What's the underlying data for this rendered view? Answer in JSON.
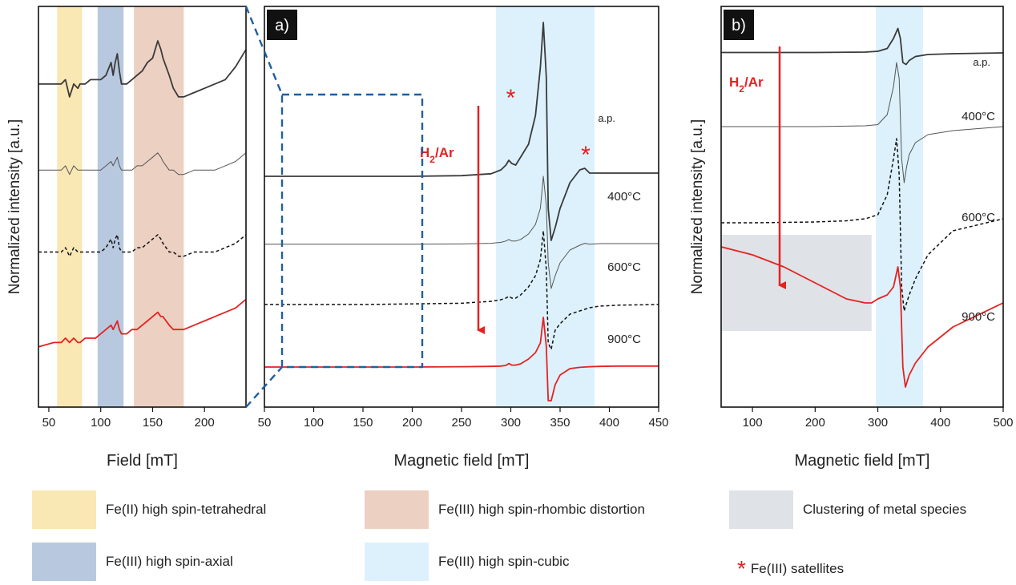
{
  "chart_data": [
    {
      "panel": "zoom",
      "type": "line",
      "xlabel": "Field [mT]",
      "ylabel": "Normalized intensity [a.u.]",
      "xlim": [
        40,
        240
      ],
      "xticks": [
        50,
        100,
        150,
        200
      ],
      "bands": [
        {
          "range": [
            58,
            82
          ],
          "legend": 0
        },
        {
          "range": [
            97,
            122
          ],
          "legend": 1
        },
        {
          "range": [
            132,
            180
          ],
          "legend": 2
        }
      ],
      "series": [
        {
          "label": "a.p.",
          "style": "dark",
          "x": [
            40,
            55,
            62,
            66,
            70,
            74,
            78,
            80,
            85,
            90,
            95,
            100,
            105,
            110,
            112,
            114,
            116,
            118,
            120,
            125,
            130,
            135,
            140,
            145,
            150,
            155,
            158,
            160,
            163,
            166,
            170,
            175,
            180,
            190,
            200,
            210,
            220,
            230,
            240
          ],
          "y": [
            0.8,
            0.8,
            0.8,
            0.81,
            0.77,
            0.8,
            0.79,
            0.8,
            0.8,
            0.81,
            0.81,
            0.81,
            0.82,
            0.85,
            0.82,
            0.85,
            0.87,
            0.83,
            0.8,
            0.8,
            0.81,
            0.82,
            0.83,
            0.85,
            0.86,
            0.9,
            0.88,
            0.86,
            0.84,
            0.82,
            0.79,
            0.77,
            0.77,
            0.78,
            0.79,
            0.8,
            0.81,
            0.84,
            0.88
          ]
        },
        {
          "label": "400°C",
          "style": "thin",
          "x": [
            40,
            55,
            62,
            66,
            70,
            74,
            78,
            80,
            85,
            90,
            95,
            100,
            105,
            110,
            112,
            114,
            116,
            118,
            120,
            125,
            130,
            135,
            140,
            145,
            150,
            155,
            158,
            160,
            163,
            166,
            170,
            175,
            180,
            190,
            200,
            210,
            220,
            230,
            240
          ],
          "y": [
            0.6,
            0.6,
            0.6,
            0.61,
            0.59,
            0.61,
            0.6,
            0.6,
            0.6,
            0.6,
            0.6,
            0.6,
            0.61,
            0.62,
            0.61,
            0.62,
            0.63,
            0.61,
            0.6,
            0.6,
            0.6,
            0.61,
            0.61,
            0.62,
            0.63,
            0.64,
            0.63,
            0.62,
            0.61,
            0.6,
            0.6,
            0.59,
            0.59,
            0.6,
            0.6,
            0.6,
            0.61,
            0.62,
            0.64
          ]
        },
        {
          "label": "600°C",
          "style": "dashed",
          "x": [
            40,
            55,
            62,
            66,
            70,
            74,
            78,
            80,
            85,
            90,
            95,
            100,
            105,
            110,
            112,
            114,
            116,
            118,
            120,
            125,
            130,
            135,
            140,
            145,
            150,
            155,
            158,
            160,
            163,
            166,
            170,
            175,
            180,
            190,
            200,
            210,
            220,
            230,
            240
          ],
          "y": [
            0.41,
            0.41,
            0.41,
            0.42,
            0.4,
            0.42,
            0.41,
            0.41,
            0.41,
            0.41,
            0.41,
            0.41,
            0.42,
            0.44,
            0.42,
            0.44,
            0.45,
            0.42,
            0.41,
            0.41,
            0.41,
            0.42,
            0.42,
            0.43,
            0.44,
            0.45,
            0.44,
            0.43,
            0.42,
            0.41,
            0.41,
            0.4,
            0.4,
            0.41,
            0.41,
            0.41,
            0.42,
            0.43,
            0.45
          ]
        },
        {
          "label": "900°C",
          "style": "red",
          "x": [
            40,
            55,
            62,
            66,
            70,
            74,
            78,
            80,
            85,
            90,
            95,
            100,
            105,
            110,
            112,
            114,
            116,
            118,
            120,
            125,
            130,
            135,
            140,
            145,
            150,
            155,
            158,
            160,
            163,
            166,
            170,
            175,
            180,
            190,
            200,
            210,
            220,
            230,
            240
          ],
          "y": [
            0.19,
            0.2,
            0.2,
            0.21,
            0.2,
            0.21,
            0.2,
            0.2,
            0.21,
            0.21,
            0.21,
            0.22,
            0.23,
            0.24,
            0.23,
            0.24,
            0.25,
            0.23,
            0.22,
            0.22,
            0.23,
            0.23,
            0.24,
            0.25,
            0.26,
            0.27,
            0.26,
            0.26,
            0.25,
            0.24,
            0.23,
            0.23,
            0.23,
            0.24,
            0.25,
            0.26,
            0.27,
            0.28,
            0.3
          ]
        }
      ]
    },
    {
      "panel": "a",
      "tag": "a)",
      "type": "line",
      "xlabel": "Magnetic field [mT]",
      "xlim": [
        50,
        450
      ],
      "xticks": [
        50,
        100,
        150,
        200,
        250,
        300,
        350,
        400,
        450
      ],
      "bands": [
        {
          "range": [
            285,
            385
          ],
          "legend": 4
        }
      ],
      "arrow_label": "H",
      "arrow_sub": "2",
      "arrow_suffix": "/Ar",
      "series": [
        {
          "label": "a.p.",
          "style": "dark",
          "x": [
            50,
            100,
            150,
            200,
            250,
            280,
            290,
            295,
            298,
            301,
            305,
            310,
            318,
            325,
            330,
            333,
            336,
            338,
            341,
            345,
            350,
            360,
            370,
            375,
            380,
            390,
            410,
            450
          ],
          "y": [
            0.72,
            0.72,
            0.72,
            0.72,
            0.722,
            0.728,
            0.74,
            0.755,
            0.77,
            0.76,
            0.755,
            0.78,
            0.82,
            0.91,
            1.06,
            1.2,
            1.03,
            0.62,
            0.52,
            0.56,
            0.62,
            0.7,
            0.74,
            0.745,
            0.73,
            0.73,
            0.73,
            0.73
          ]
        },
        {
          "label": "400°C",
          "style": "thin",
          "x": [
            50,
            100,
            150,
            200,
            250,
            280,
            290,
            295,
            298,
            301,
            305,
            310,
            318,
            325,
            330,
            333,
            336,
            338,
            341,
            345,
            350,
            360,
            370,
            375,
            380,
            390,
            410,
            450
          ],
          "y": [
            0.508,
            0.508,
            0.508,
            0.508,
            0.509,
            0.511,
            0.514,
            0.518,
            0.523,
            0.518,
            0.518,
            0.523,
            0.54,
            0.57,
            0.62,
            0.72,
            0.63,
            0.45,
            0.37,
            0.41,
            0.45,
            0.49,
            0.505,
            0.511,
            0.508,
            0.51,
            0.51,
            0.51
          ]
        },
        {
          "label": "600°C",
          "style": "dashed",
          "x": [
            50,
            100,
            150,
            200,
            250,
            280,
            290,
            295,
            298,
            301,
            305,
            310,
            318,
            325,
            330,
            333,
            336,
            338,
            341,
            345,
            350,
            360,
            370,
            375,
            380,
            390,
            410,
            450
          ],
          "y": [
            0.32,
            0.32,
            0.32,
            0.322,
            0.324,
            0.33,
            0.335,
            0.34,
            0.346,
            0.34,
            0.34,
            0.35,
            0.375,
            0.41,
            0.46,
            0.55,
            0.43,
            0.2,
            0.18,
            0.24,
            0.26,
            0.29,
            0.3,
            0.305,
            0.31,
            0.315,
            0.318,
            0.32
          ]
        },
        {
          "label": "900°C",
          "style": "red",
          "x": [
            50,
            100,
            150,
            200,
            250,
            280,
            290,
            295,
            298,
            301,
            305,
            310,
            318,
            325,
            330,
            333,
            336,
            338,
            341,
            345,
            350,
            360,
            370,
            375,
            380,
            390,
            410,
            450
          ],
          "y": [
            0.125,
            0.125,
            0.125,
            0.125,
            0.126,
            0.127,
            0.128,
            0.13,
            0.136,
            0.131,
            0.131,
            0.135,
            0.15,
            0.17,
            0.2,
            0.28,
            0.19,
            0.02,
            0.02,
            0.07,
            0.1,
            0.12,
            0.124,
            0.125,
            0.126,
            0.127,
            0.128,
            0.128
          ]
        }
      ]
    },
    {
      "panel": "b",
      "tag": "b)",
      "type": "line",
      "xlabel": "Magnetic field [mT]",
      "ylabel": "Normalized intensity [a.u.]",
      "xlim": [
        50,
        500
      ],
      "xticks": [
        100,
        200,
        300,
        400,
        500
      ],
      "bands": [
        {
          "range": [
            297,
            372
          ],
          "legend": 4
        },
        {
          "range": [
            50,
            290
          ],
          "legend": 3,
          "ybox": [
            0.19,
            0.43
          ]
        }
      ],
      "arrow_label": "H",
      "arrow_sub": "2",
      "arrow_suffix": "/Ar",
      "series": [
        {
          "label": "a.p.",
          "style": "dark",
          "x": [
            50,
            100,
            200,
            280,
            300,
            315,
            325,
            332,
            336,
            340,
            345,
            350,
            360,
            380,
            420,
            500
          ],
          "y": [
            0.885,
            0.885,
            0.885,
            0.886,
            0.888,
            0.895,
            0.92,
            0.945,
            0.92,
            0.86,
            0.855,
            0.865,
            0.875,
            0.88,
            0.882,
            0.884
          ]
        },
        {
          "label": "400°C",
          "style": "thin",
          "x": [
            50,
            100,
            200,
            280,
            300,
            315,
            325,
            330,
            334,
            338,
            342,
            346,
            350,
            360,
            380,
            420,
            500
          ],
          "y": [
            0.7,
            0.7,
            0.7,
            0.702,
            0.705,
            0.73,
            0.8,
            0.86,
            0.82,
            0.62,
            0.56,
            0.6,
            0.63,
            0.66,
            0.68,
            0.69,
            0.7
          ]
        },
        {
          "label": "600°C",
          "style": "dashed",
          "x": [
            50,
            100,
            200,
            250,
            280,
            300,
            315,
            325,
            330,
            334,
            338,
            342,
            346,
            350,
            360,
            380,
            420,
            500
          ],
          "y": [
            0.46,
            0.46,
            0.462,
            0.465,
            0.47,
            0.48,
            0.53,
            0.62,
            0.67,
            0.58,
            0.3,
            0.24,
            0.26,
            0.28,
            0.32,
            0.38,
            0.44,
            0.47
          ]
        },
        {
          "label": "900°C",
          "style": "red",
          "x": [
            50,
            100,
            150,
            200,
            250,
            280,
            290,
            300,
            315,
            325,
            332,
            336,
            340,
            344,
            350,
            360,
            380,
            420,
            500
          ],
          "y": [
            0.4,
            0.38,
            0.35,
            0.31,
            0.27,
            0.26,
            0.26,
            0.27,
            0.28,
            0.3,
            0.35,
            0.3,
            0.1,
            0.05,
            0.08,
            0.11,
            0.15,
            0.2,
            0.26
          ]
        }
      ]
    }
  ],
  "legend": [
    {
      "label": "Fe(II) high spin-tetrahedral",
      "color": "#f9e7b4"
    },
    {
      "label": "Fe(III) high spin-axial",
      "color": "#b8c9df"
    },
    {
      "label": "Fe(III) high spin-rhombic distortion",
      "color": "#ecd0c2"
    },
    {
      "label": "Clustering of metal species",
      "color": "#dfe2e7"
    },
    {
      "label": "Fe(III) high spin-cubic",
      "color": "#dcf1fb"
    },
    {
      "label": "Fe(III) satellites",
      "color": "#e02020",
      "glyph": "star-icon"
    }
  ]
}
